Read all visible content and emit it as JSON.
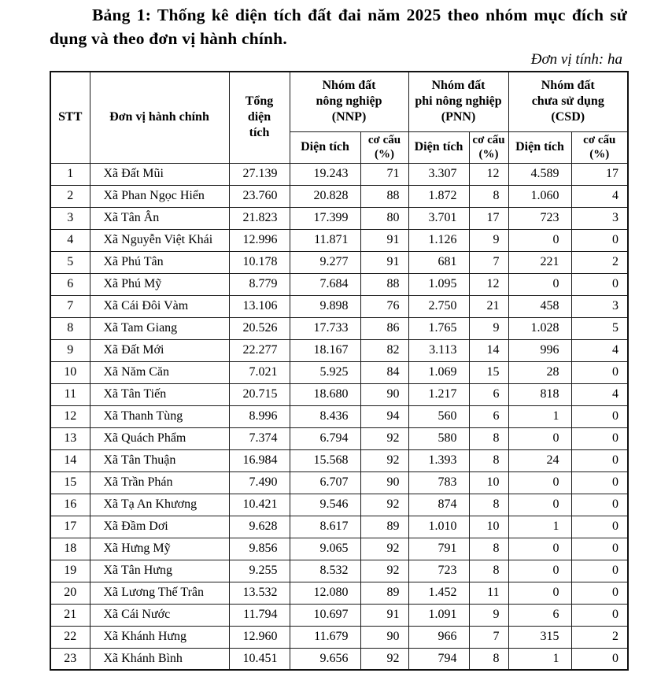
{
  "page": {
    "title": "Bảng 1: Thống kê diện tích đất đai năm 2025 theo nhóm mục đích sử dụng và theo đơn vị hành chính.",
    "unit_note": "Đơn vị tính: ha"
  },
  "table": {
    "headers": {
      "stt": "STT",
      "admin_unit": "Đơn vị hành chính",
      "total_area_lines": [
        "Tổng",
        "diện",
        "tích"
      ],
      "groups": [
        {
          "id": "NNP",
          "lines": [
            "Nhóm đất",
            "nông nghiệp",
            "(NNP)"
          ]
        },
        {
          "id": "PNN",
          "lines": [
            "Nhóm đất",
            "phi nông nghiệp",
            "(PNN)"
          ]
        },
        {
          "id": "CSD",
          "lines": [
            "Nhóm đất",
            "chưa sử dụng",
            "(CSD)"
          ]
        }
      ],
      "sub_area": "Diện tích",
      "sub_ratio_lines": [
        "cơ cấu",
        "(%)"
      ]
    },
    "rows": [
      {
        "stt": "1",
        "name": "Xã Đất Mũi",
        "total": "27.139",
        "nnp_area": "19.243",
        "nnp_pct": "71",
        "pnn_area": "3.307",
        "pnn_pct": "12",
        "csd_area": "4.589",
        "csd_pct": "17"
      },
      {
        "stt": "2",
        "name": "Xã Phan Ngọc Hiển",
        "total": "23.760",
        "nnp_area": "20.828",
        "nnp_pct": "88",
        "pnn_area": "1.872",
        "pnn_pct": "8",
        "csd_area": "1.060",
        "csd_pct": "4"
      },
      {
        "stt": "3",
        "name": "Xã Tân Ân",
        "total": "21.823",
        "nnp_area": "17.399",
        "nnp_pct": "80",
        "pnn_area": "3.701",
        "pnn_pct": "17",
        "csd_area": "723",
        "csd_pct": "3"
      },
      {
        "stt": "4",
        "name": "Xã Nguyễn Việt Khái",
        "total": "12.996",
        "nnp_area": "11.871",
        "nnp_pct": "91",
        "pnn_area": "1.126",
        "pnn_pct": "9",
        "csd_area": "0",
        "csd_pct": "0"
      },
      {
        "stt": "5",
        "name": "Xã Phú Tân",
        "total": "10.178",
        "nnp_area": "9.277",
        "nnp_pct": "91",
        "pnn_area": "681",
        "pnn_pct": "7",
        "csd_area": "221",
        "csd_pct": "2"
      },
      {
        "stt": "6",
        "name": "Xã Phú Mỹ",
        "total": "8.779",
        "nnp_area": "7.684",
        "nnp_pct": "88",
        "pnn_area": "1.095",
        "pnn_pct": "12",
        "csd_area": "0",
        "csd_pct": "0"
      },
      {
        "stt": "7",
        "name": "Xã Cái Đôi Vàm",
        "total": "13.106",
        "nnp_area": "9.898",
        "nnp_pct": "76",
        "pnn_area": "2.750",
        "pnn_pct": "21",
        "csd_area": "458",
        "csd_pct": "3"
      },
      {
        "stt": "8",
        "name": "Xã Tam Giang",
        "total": "20.526",
        "nnp_area": "17.733",
        "nnp_pct": "86",
        "pnn_area": "1.765",
        "pnn_pct": "9",
        "csd_area": "1.028",
        "csd_pct": "5"
      },
      {
        "stt": "9",
        "name": "Xã Đất Mới",
        "total": "22.277",
        "nnp_area": "18.167",
        "nnp_pct": "82",
        "pnn_area": "3.113",
        "pnn_pct": "14",
        "csd_area": "996",
        "csd_pct": "4"
      },
      {
        "stt": "10",
        "name": "Xã Năm Căn",
        "total": "7.021",
        "nnp_area": "5.925",
        "nnp_pct": "84",
        "pnn_area": "1.069",
        "pnn_pct": "15",
        "csd_area": "28",
        "csd_pct": "0"
      },
      {
        "stt": "11",
        "name": "Xã Tân Tiến",
        "total": "20.715",
        "nnp_area": "18.680",
        "nnp_pct": "90",
        "pnn_area": "1.217",
        "pnn_pct": "6",
        "csd_area": "818",
        "csd_pct": "4"
      },
      {
        "stt": "12",
        "name": "Xã Thanh Tùng",
        "total": "8.996",
        "nnp_area": "8.436",
        "nnp_pct": "94",
        "pnn_area": "560",
        "pnn_pct": "6",
        "csd_area": "1",
        "csd_pct": "0"
      },
      {
        "stt": "13",
        "name": "Xã Quách Phẩm",
        "total": "7.374",
        "nnp_area": "6.794",
        "nnp_pct": "92",
        "pnn_area": "580",
        "pnn_pct": "8",
        "csd_area": "0",
        "csd_pct": "0"
      },
      {
        "stt": "14",
        "name": "Xã Tân Thuận",
        "total": "16.984",
        "nnp_area": "15.568",
        "nnp_pct": "92",
        "pnn_area": "1.393",
        "pnn_pct": "8",
        "csd_area": "24",
        "csd_pct": "0"
      },
      {
        "stt": "15",
        "name": "Xã Trần Phán",
        "total": "7.490",
        "nnp_area": "6.707",
        "nnp_pct": "90",
        "pnn_area": "783",
        "pnn_pct": "10",
        "csd_area": "0",
        "csd_pct": "0"
      },
      {
        "stt": "16",
        "name": "Xã Tạ An Khương",
        "total": "10.421",
        "nnp_area": "9.546",
        "nnp_pct": "92",
        "pnn_area": "874",
        "pnn_pct": "8",
        "csd_area": "0",
        "csd_pct": "0"
      },
      {
        "stt": "17",
        "name": "Xã Đầm Dơi",
        "total": "9.628",
        "nnp_area": "8.617",
        "nnp_pct": "89",
        "pnn_area": "1.010",
        "pnn_pct": "10",
        "csd_area": "1",
        "csd_pct": "0"
      },
      {
        "stt": "18",
        "name": "Xã Hưng Mỹ",
        "total": "9.856",
        "nnp_area": "9.065",
        "nnp_pct": "92",
        "pnn_area": "791",
        "pnn_pct": "8",
        "csd_area": "0",
        "csd_pct": "0"
      },
      {
        "stt": "19",
        "name": "Xã Tân Hưng",
        "total": "9.255",
        "nnp_area": "8.532",
        "nnp_pct": "92",
        "pnn_area": "723",
        "pnn_pct": "8",
        "csd_area": "0",
        "csd_pct": "0"
      },
      {
        "stt": "20",
        "name": "Xã Lương Thế Trân",
        "total": "13.532",
        "nnp_area": "12.080",
        "nnp_pct": "89",
        "pnn_area": "1.452",
        "pnn_pct": "11",
        "csd_area": "0",
        "csd_pct": "0"
      },
      {
        "stt": "21",
        "name": "Xã Cái Nước",
        "total": "11.794",
        "nnp_area": "10.697",
        "nnp_pct": "91",
        "pnn_area": "1.091",
        "pnn_pct": "9",
        "csd_area": "6",
        "csd_pct": "0"
      },
      {
        "stt": "22",
        "name": "Xã Khánh Hưng",
        "total": "12.960",
        "nnp_area": "11.679",
        "nnp_pct": "90",
        "pnn_area": "966",
        "pnn_pct": "7",
        "csd_area": "315",
        "csd_pct": "2"
      },
      {
        "stt": "23",
        "name": "Xã Khánh Bình",
        "total": "10.451",
        "nnp_area": "9.656",
        "nnp_pct": "92",
        "pnn_area": "794",
        "pnn_pct": "8",
        "csd_area": "1",
        "csd_pct": "0"
      }
    ]
  }
}
